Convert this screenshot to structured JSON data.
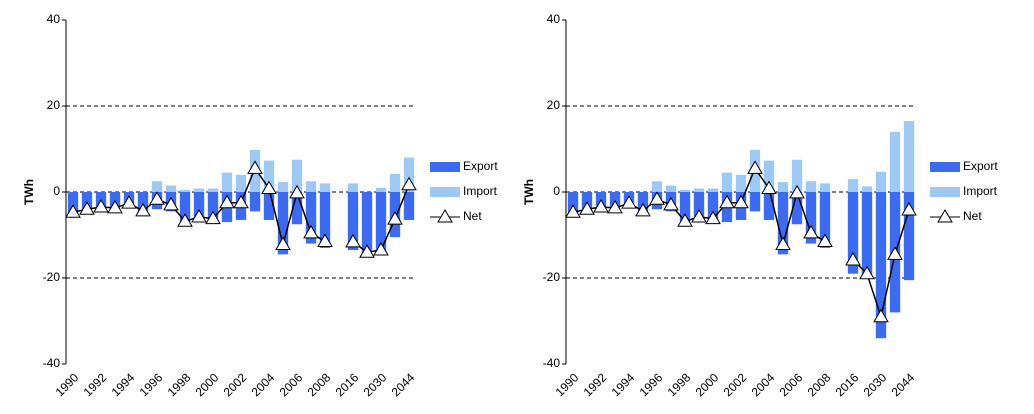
{
  "chart_data": [
    {
      "type": "bar",
      "ylabel": "TWh",
      "ylim": [
        -40,
        40
      ],
      "yticks": [
        -40,
        -20,
        0,
        20,
        40
      ],
      "grid": true,
      "legend": "right",
      "categories": [
        "1990",
        null,
        "1992",
        null,
        "1994",
        null,
        "1996",
        null,
        "1998",
        null,
        "2000",
        null,
        "2002",
        null,
        "2004",
        null,
        "2006",
        null,
        "2008",
        null,
        "2016",
        null,
        "2030",
        null,
        "2044"
      ],
      "series": [
        {
          "name": "Export",
          "color": "#3d6bf0",
          "values": [
            -5,
            -4,
            -3.5,
            -4,
            -3,
            -4.5,
            -4,
            -4.5,
            -7,
            -6.5,
            -7,
            -7,
            -6.5,
            -4.5,
            -6.5,
            -14.5,
            -7.5,
            -12,
            -13,
            null,
            -13.5,
            -14,
            -14.5,
            -10.5,
            -6.5
          ]
        },
        {
          "name": "Import",
          "color": "#9ec9f5",
          "values": [
            0,
            0,
            0,
            0,
            0,
            0,
            2.5,
            1.5,
            0.5,
            0.8,
            0.8,
            4.5,
            4,
            9.8,
            7.3,
            2.3,
            7.5,
            2.5,
            2,
            null,
            2,
            0,
            1,
            4.2,
            8
          ]
        },
        {
          "name": "Net",
          "type": "line",
          "color": "#000000",
          "values": [
            -4.7,
            -4,
            -3.5,
            -3.7,
            -2.6,
            -4.4,
            -1.7,
            -3,
            -6.8,
            -5.8,
            -6.2,
            -2.5,
            -2.5,
            5.5,
            0.8,
            -12.2,
            -0.2,
            -9.5,
            -11.5,
            null,
            -11.6,
            -14,
            -13.5,
            -6.3,
            1.7
          ]
        }
      ]
    },
    {
      "type": "bar",
      "ylabel": "TWh",
      "ylim": [
        -40,
        40
      ],
      "yticks": [
        -40,
        -20,
        0,
        20,
        40
      ],
      "grid": true,
      "legend": "right",
      "categories": [
        "1990",
        null,
        "1992",
        null,
        "1994",
        null,
        "1996",
        null,
        "1998",
        null,
        "2000",
        null,
        "2002",
        null,
        "2004",
        null,
        "2006",
        null,
        "2008",
        null,
        "2016",
        null,
        "2030",
        null,
        "2044"
      ],
      "series": [
        {
          "name": "Export",
          "color": "#3d6bf0",
          "values": [
            -5,
            -4,
            -3.5,
            -4,
            -3,
            -4.5,
            -4,
            -4.5,
            -7,
            -6.5,
            -7,
            -7,
            -6.5,
            -4.5,
            -6.5,
            -14.5,
            -7.5,
            -12,
            -13,
            null,
            -19,
            -20,
            -34,
            -28,
            -20.5
          ]
        },
        {
          "name": "Import",
          "color": "#9ec9f5",
          "values": [
            0,
            0,
            0,
            0,
            0,
            0,
            2.5,
            1.5,
            0.5,
            0.8,
            0.8,
            4.5,
            4,
            9.8,
            7.3,
            2.3,
            7.5,
            2.5,
            2,
            null,
            3,
            1.3,
            4.7,
            14,
            16.5
          ]
        },
        {
          "name": "Net",
          "type": "line",
          "color": "#000000",
          "values": [
            -4.7,
            -4,
            -3.5,
            -3.7,
            -2.6,
            -4.4,
            -1.7,
            -3,
            -6.8,
            -5.8,
            -6.2,
            -2.5,
            -2.5,
            5.5,
            0.8,
            -12.2,
            -0.2,
            -9.5,
            -11.5,
            null,
            -15.8,
            -19,
            -29,
            -14.5,
            -4.2
          ]
        }
      ]
    }
  ]
}
